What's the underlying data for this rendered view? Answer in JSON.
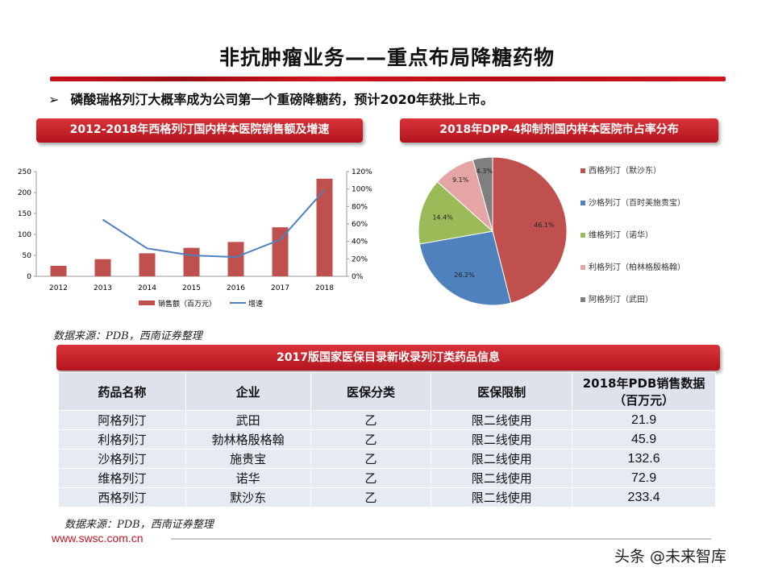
{
  "header": {
    "title": "非抗肿瘤业务——重点布局降糖药物",
    "bullet_icon": "arrow-bullet-icon",
    "bullet_marker": "➢",
    "bullet": "磷酸瑞格列汀大概率成为公司第一个重磅降糖药，预计2020年获批上市。"
  },
  "colors": {
    "accent": "#c0151c",
    "bar": "#c0504d",
    "line": "#4f81bd"
  },
  "chart_data": [
    {
      "type": "bar+line",
      "title": "2012-2018年西格列汀国内样本医院销售额及增速",
      "categories": [
        "2012",
        "2013",
        "2014",
        "2015",
        "2016",
        "2017",
        "2018"
      ],
      "series": [
        {
          "name": "销售额（百万元）",
          "type": "bar",
          "axis": "left",
          "values": [
            25,
            41,
            55,
            68,
            82,
            117,
            233
          ]
        },
        {
          "name": "增速",
          "type": "line",
          "axis": "right",
          "values": [
            null,
            65,
            32,
            24,
            22,
            42,
            99
          ]
        }
      ],
      "yleft": {
        "ticks": [
          "0",
          "50",
          "100",
          "150",
          "200",
          "250"
        ],
        "range": [
          0,
          250
        ]
      },
      "yright": {
        "ticks": [
          "0%",
          "20%",
          "40%",
          "60%",
          "80%",
          "100%",
          "120%"
        ],
        "range": [
          0,
          120
        ]
      },
      "legend": "bottom",
      "grid": false
    },
    {
      "type": "pie",
      "title": "2018年DPP-4抑制剂国内样本医院市占率分布",
      "slices": [
        {
          "label": "西格列汀（默沙东）",
          "value": 46.1,
          "text": "46.1%",
          "color": "#c0504d"
        },
        {
          "label": "沙格列汀（百时美施贵宝）",
          "value": 26.2,
          "text": "26.2%",
          "color": "#4f81bd"
        },
        {
          "label": "维格列汀（诺华）",
          "value": 14.4,
          "text": "14.4%",
          "color": "#9bbb59"
        },
        {
          "label": "利格列汀（柏林格殷格翰）",
          "value": 9.1,
          "text": "9.1%",
          "color": "#e6a5a5"
        },
        {
          "label": "阿格列汀（武田）",
          "value": 4.3,
          "text": "4.3%",
          "color": "#7f7f7f"
        }
      ],
      "legend": "right"
    }
  ],
  "source1": "数据来源：PDB，西南证券整理",
  "table": {
    "title": "2017版国家医保目录新收录列汀类药品信息",
    "headers": [
      "药品名称",
      "企业",
      "医保分类",
      "医保限制",
      "2018年PDB销售数据（百万元）"
    ],
    "rows": [
      [
        "阿格列汀",
        "武田",
        "乙",
        "限二线使用",
        "21.9"
      ],
      [
        "利格列汀",
        "勃林格殷格翰",
        "乙",
        "限二线使用",
        "45.9"
      ],
      [
        "沙格列汀",
        "施贵宝",
        "乙",
        "限二线使用",
        "132.6"
      ],
      [
        "维格列汀",
        "诺华",
        "乙",
        "限二线使用",
        "72.9"
      ],
      [
        "西格列汀",
        "默沙东",
        "乙",
        "限二线使用",
        "233.4"
      ]
    ]
  },
  "source2": "数据来源：PDB，西南证券整理",
  "footer": {
    "url": "www.swsc.com.cn",
    "watermark": "头条 @未来智库"
  }
}
